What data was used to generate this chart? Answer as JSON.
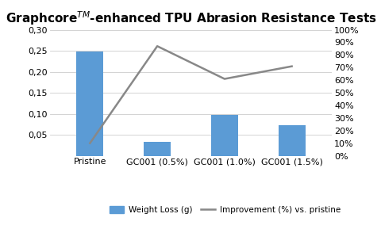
{
  "categories": [
    "Pristine",
    "GC001 (0.5%)",
    "GC001 (1.0%)",
    "GC001 (1.5%)"
  ],
  "weight_loss": [
    0.249,
    0.034,
    0.097,
    0.073
  ],
  "improvement": [
    0.1,
    0.87,
    0.61,
    0.71
  ],
  "bar_color": "#5B9BD5",
  "line_color": "#888888",
  "title": "Graphcore$^{TM}$-enhanced TPU Abrasion Resistance Tests",
  "ylim_left": [
    0,
    0.3
  ],
  "ylim_right": [
    0,
    1.0
  ],
  "yticks_left": [
    0.05,
    0.1,
    0.15,
    0.2,
    0.25,
    0.3
  ],
  "yticks_right": [
    0.0,
    0.1,
    0.2,
    0.3,
    0.4,
    0.5,
    0.6,
    0.7,
    0.8,
    0.9,
    1.0
  ],
  "legend_bar_label": "Weight Loss (g)",
  "legend_line_label": "Improvement (%) vs. pristine",
  "bg_color": "#FFFFFF",
  "title_fontsize": 11,
  "tick_fontsize": 8,
  "bar_width": 0.4
}
